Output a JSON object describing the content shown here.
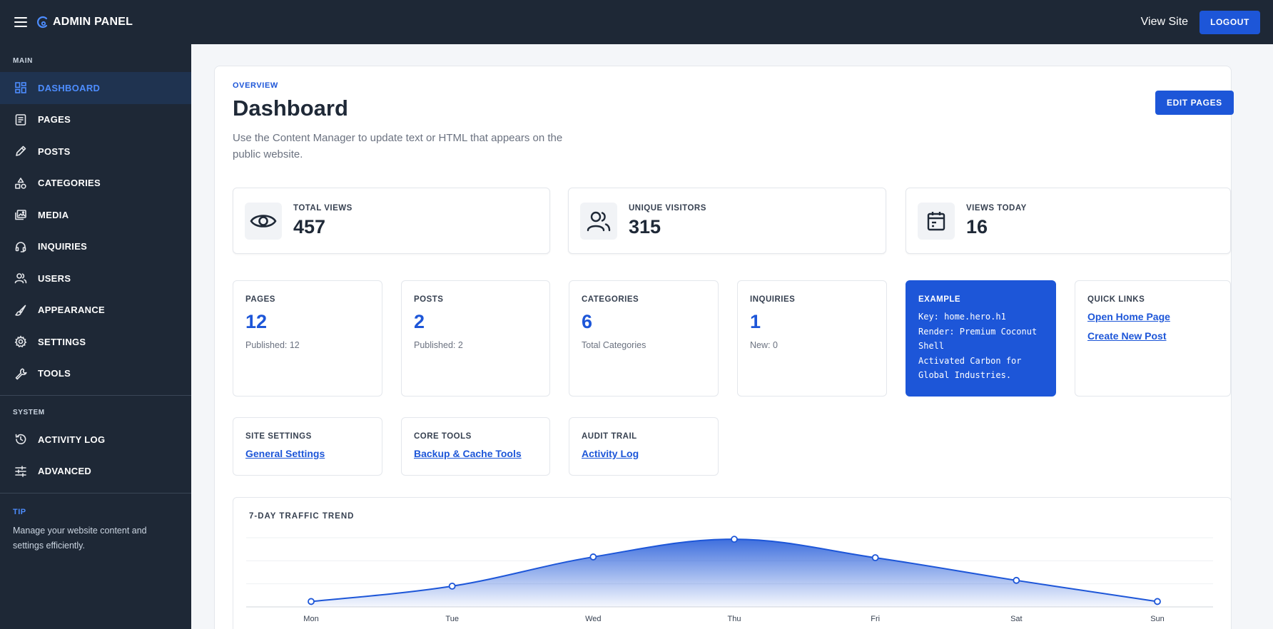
{
  "topbar": {
    "brand": "ADMIN PANEL",
    "view_site": "View Site",
    "logout": "LOGOUT"
  },
  "sidebar": {
    "main_heading": "MAIN",
    "items": [
      {
        "label": "DASHBOARD",
        "icon": "dashboard-icon",
        "active": true
      },
      {
        "label": "PAGES",
        "icon": "pages-icon"
      },
      {
        "label": "POSTS",
        "icon": "pencil-icon"
      },
      {
        "label": "CATEGORIES",
        "icon": "shapes-icon"
      },
      {
        "label": "MEDIA",
        "icon": "media-icon"
      },
      {
        "label": "INQUIRIES",
        "icon": "headset-icon"
      },
      {
        "label": "USERS",
        "icon": "users-icon"
      },
      {
        "label": "APPEARANCE",
        "icon": "brush-icon"
      },
      {
        "label": "SETTINGS",
        "icon": "gear-icon"
      },
      {
        "label": "TOOLS",
        "icon": "wrench-icon"
      }
    ],
    "system_heading": "SYSTEM",
    "system_items": [
      {
        "label": "ACTIVITY LOG",
        "icon": "history-icon"
      },
      {
        "label": "ADVANCED",
        "icon": "sliders-icon"
      }
    ],
    "tip_title": "TIP",
    "tip_text": "Manage your website content and settings efficiently."
  },
  "main": {
    "eyebrow": "OVERVIEW",
    "title": "Dashboard",
    "description": "Use the Content Manager to update text or HTML that appears on the public website.",
    "edit_pages": "EDIT PAGES"
  },
  "stats": [
    {
      "label": "TOTAL VIEWS",
      "value": "457",
      "icon": "eye-icon"
    },
    {
      "label": "UNIQUE VISITORS",
      "value": "315",
      "icon": "users-icon"
    },
    {
      "label": "VIEWS TODAY",
      "value": "16",
      "icon": "calendar-icon"
    }
  ],
  "tiles": {
    "pages": {
      "label": "PAGES",
      "value": "12",
      "sub": "Published: 12"
    },
    "posts": {
      "label": "POSTS",
      "value": "2",
      "sub": "Published: 2"
    },
    "categories": {
      "label": "CATEGORIES",
      "value": "6",
      "sub": "Total Categories"
    },
    "inquiries": {
      "label": "INQUIRIES",
      "value": "1",
      "sub": "New: 0"
    },
    "example": {
      "label": "EXAMPLE",
      "lines": [
        "Key: home.hero.h1",
        "Render: Premium Coconut",
        "Shell",
        "Activated Carbon for",
        "Global Industries."
      ]
    },
    "quick_links": {
      "label": "QUICK LINKS",
      "link1": "Open Home Page",
      "link2": "Create New Post"
    }
  },
  "shortcuts": {
    "site_settings": {
      "label": "SITE SETTINGS",
      "link": "General Settings"
    },
    "core_tools": {
      "label": "CORE TOOLS",
      "link": "Backup & Cache Tools"
    },
    "audit_trail": {
      "label": "AUDIT TRAIL",
      "link": "Activity Log"
    }
  },
  "chart_data": {
    "type": "area",
    "title": "7-DAY TRAFFIC TREND",
    "categories": [
      "Mon",
      "Tue",
      "Wed",
      "Thu",
      "Fri",
      "Sat",
      "Sun"
    ],
    "series": [
      {
        "values": [
          14,
          54,
          130,
          176,
          128,
          69,
          14
        ]
      }
    ],
    "yticks": [
      0,
      60,
      120,
      180
    ],
    "ylim": [
      0,
      180
    ],
    "grid": true,
    "color": "#1d56d8"
  }
}
